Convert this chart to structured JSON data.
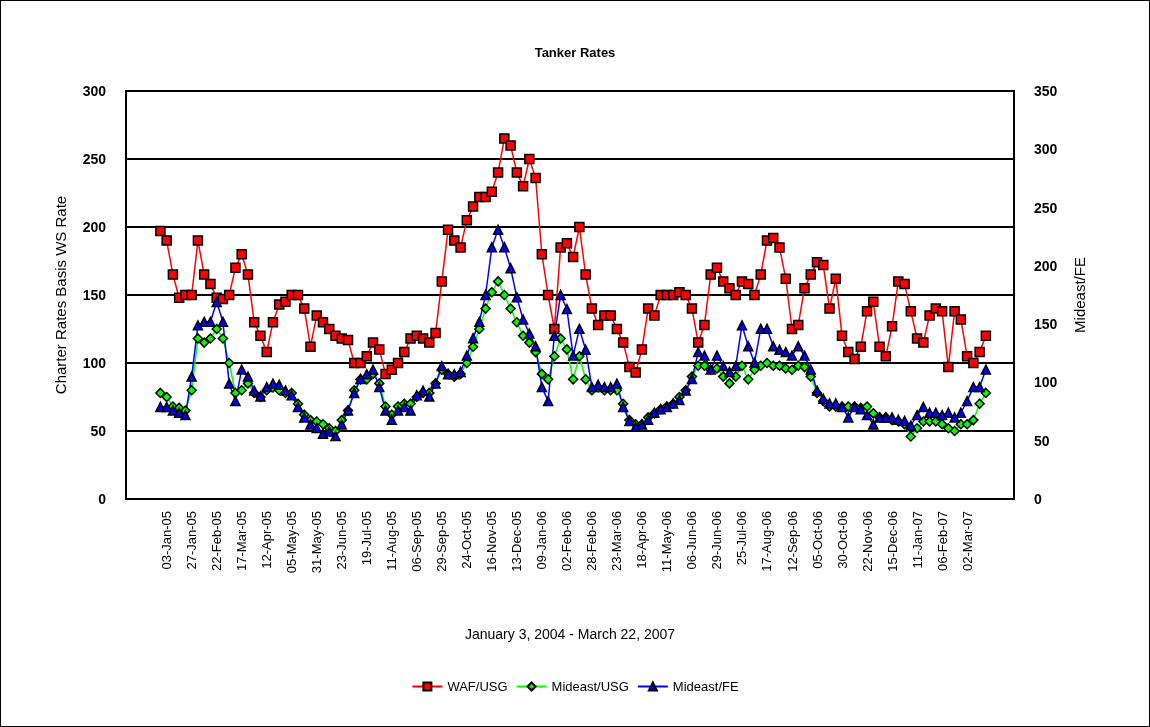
{
  "chart_data": {
    "type": "line",
    "title": "Tanker Rates",
    "xlabel": "January 3, 2004 - March 22, 2007",
    "ylabel": "Charter Rates Basis WS Rate",
    "y2label": "Mideast/FE",
    "categories": [
      null,
      null,
      null,
      null,
      null,
      null,
      "03-Jan-05",
      null,
      null,
      null,
      "27-Jan-05",
      null,
      null,
      null,
      "22-Feb-05",
      null,
      null,
      null,
      "17-Mar-05",
      null,
      null,
      null,
      "12-Apr-05",
      null,
      null,
      null,
      "05-May-05",
      null,
      null,
      null,
      "31-May-05",
      null,
      null,
      null,
      "23-Jun-05",
      null,
      null,
      null,
      "19-Jul-05",
      null,
      null,
      null,
      "11-Aug-05",
      null,
      null,
      null,
      "06-Sep-05",
      null,
      null,
      null,
      "29-Sep-05",
      null,
      null,
      null,
      "24-Oct-05",
      null,
      null,
      null,
      "16-Nov-05",
      null,
      null,
      null,
      "13-Dec-05",
      null,
      null,
      null,
      "09-Jan-06",
      null,
      null,
      null,
      "02-Feb-06",
      null,
      null,
      null,
      "28-Feb-06",
      null,
      null,
      null,
      "23-Mar-06",
      null,
      null,
      null,
      "18-Apr-06",
      null,
      null,
      null,
      "11-May-06",
      null,
      null,
      null,
      "06-Jun-06",
      null,
      null,
      null,
      "29-Jun-06",
      null,
      null,
      null,
      "25-Jul-06",
      null,
      null,
      null,
      "17-Aug-06",
      null,
      null,
      null,
      "12-Sep-06",
      null,
      null,
      null,
      "05-Oct-06",
      null,
      null,
      null,
      "30-Oct-06",
      null,
      null,
      null,
      "22-Nov-06",
      null,
      null,
      null,
      "15-Dec-06",
      null,
      null,
      null,
      "11-Jan-07",
      null,
      null,
      null,
      "06-Feb-07",
      null,
      null,
      null,
      "02-Mar-07",
      null,
      null,
      null,
      null,
      null,
      null,
      null
    ],
    "series": [
      {
        "name": "WAF/USG",
        "color": "#ff0000",
        "marker": "square",
        "values": [
          null,
          null,
          null,
          null,
          null,
          197,
          190,
          165,
          148,
          150,
          150,
          190,
          165,
          158,
          148,
          147,
          150,
          170,
          180,
          165,
          130,
          120,
          108,
          130,
          143,
          145,
          150,
          150,
          140,
          112,
          135,
          130,
          125,
          120,
          118,
          117,
          100,
          100,
          105,
          115,
          110,
          92,
          95,
          100,
          108,
          118,
          120,
          118,
          115,
          122,
          160,
          198,
          190,
          185,
          205,
          215,
          222,
          222,
          226,
          240,
          265,
          260,
          240,
          230,
          250,
          236,
          180,
          150,
          125,
          185,
          188,
          178,
          200,
          165,
          140,
          128,
          135,
          135,
          125,
          115,
          97,
          93,
          110,
          140,
          135,
          150,
          150,
          150,
          152,
          150,
          140,
          115,
          128,
          165,
          170,
          160,
          155,
          150,
          160,
          158,
          150,
          165,
          190,
          192,
          185,
          162,
          125,
          128,
          155,
          165,
          174,
          172,
          140,
          162,
          120,
          108,
          103,
          112,
          138,
          145,
          112,
          105,
          127,
          160,
          158,
          138,
          118,
          115,
          135,
          140,
          138,
          97,
          138,
          132,
          105,
          100,
          108,
          120,
          null,
          null,
          null,
          null
        ]
      },
      {
        "name": "Mideast/USG",
        "color": "#00ff00",
        "marker": "diamond",
        "values": [
          null,
          null,
          null,
          null,
          null,
          78,
          75,
          68,
          67,
          65,
          80,
          118,
          115,
          118,
          125,
          118,
          100,
          78,
          80,
          85,
          78,
          75,
          80,
          82,
          80,
          78,
          78,
          70,
          62,
          58,
          57,
          55,
          52,
          50,
          58,
          65,
          80,
          88,
          88,
          92,
          85,
          68,
          62,
          68,
          70,
          70,
          75,
          78,
          78,
          85,
          95,
          92,
          90,
          92,
          100,
          112,
          125,
          140,
          152,
          160,
          150,
          140,
          130,
          120,
          115,
          108,
          92,
          88,
          105,
          118,
          110,
          88,
          105,
          88,
          80,
          82,
          80,
          80,
          80,
          70,
          58,
          55,
          55,
          60,
          63,
          66,
          68,
          70,
          75,
          80,
          90,
          98,
          98,
          95,
          96,
          90,
          85,
          90,
          98,
          88,
          95,
          98,
          100,
          98,
          98,
          96,
          95,
          98,
          97,
          90,
          78,
          72,
          68,
          68,
          68,
          68,
          68,
          67,
          68,
          63,
          60,
          60,
          58,
          57,
          55,
          46,
          52,
          57,
          57,
          57,
          55,
          52,
          50,
          55,
          55,
          58,
          70,
          78,
          null,
          null,
          null,
          null
        ]
      },
      {
        "name": "Mideast/FE",
        "color": "#0000ff",
        "marker": "triangle",
        "axis": "y2",
        "values": [
          null,
          null,
          null,
          null,
          null,
          79,
          79,
          76,
          74,
          72,
          105,
          149,
          152,
          152,
          169,
          152,
          99,
          84,
          111,
          105,
          93,
          88,
          96,
          99,
          98,
          93,
          89,
          79,
          70,
          64,
          61,
          56,
          58,
          54,
          64,
          76,
          91,
          103,
          107,
          111,
          96,
          76,
          68,
          76,
          79,
          76,
          89,
          93,
          88,
          99,
          114,
          107,
          107,
          109,
          123,
          138,
          152,
          175,
          216,
          231,
          216,
          198,
          173,
          154,
          142,
          131,
          96,
          84,
          140,
          175,
          163,
          123,
          146,
          128,
          96,
          98,
          96,
          96,
          99,
          79,
          67,
          62,
          64,
          68,
          74,
          77,
          79,
          82,
          85,
          93,
          103,
          126,
          123,
          111,
          123,
          114,
          109,
          114,
          149,
          131,
          117,
          146,
          146,
          131,
          128,
          126,
          123,
          131,
          123,
          111,
          93,
          86,
          82,
          82,
          79,
          70,
          79,
          77,
          72,
          64,
          70,
          70,
          70,
          68,
          67,
          63,
          72,
          79,
          74,
          74,
          72,
          74,
          70,
          74,
          84,
          96,
          96,
          111,
          null,
          null,
          null,
          null
        ]
      }
    ],
    "ylim": [
      0,
      300
    ],
    "yticks": [
      0,
      50,
      100,
      150,
      200,
      250,
      300
    ],
    "y2lim": [
      0,
      350
    ],
    "y2ticks": [
      0,
      50,
      100,
      150,
      200,
      250,
      300,
      350
    ],
    "grid": "y",
    "legend": "bottom",
    "line_style": "solid"
  }
}
